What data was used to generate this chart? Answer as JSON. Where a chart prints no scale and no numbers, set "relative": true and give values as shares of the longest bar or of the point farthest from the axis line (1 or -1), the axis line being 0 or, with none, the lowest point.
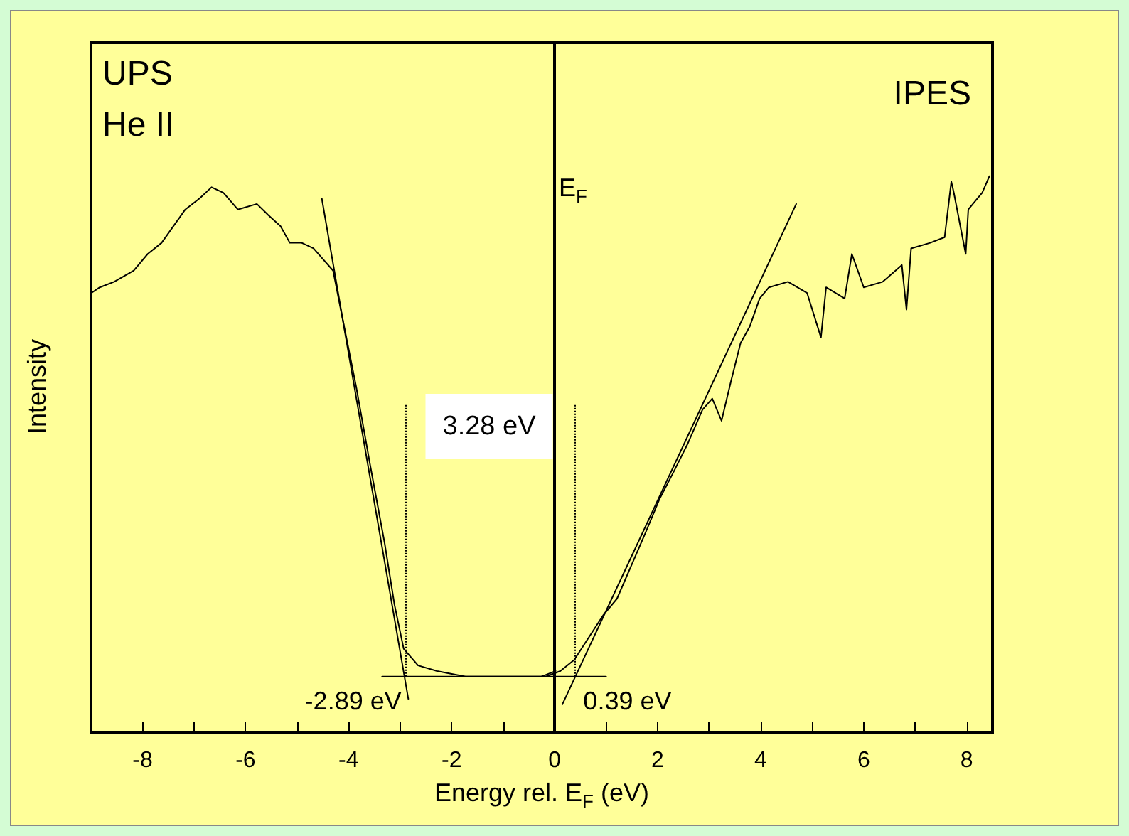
{
  "chart_data": {
    "type": "line",
    "xlabel": "Energy rel. E$_{F}$ (eV)",
    "ylabel": "Intensity",
    "relative": true,
    "xlim": [
      -9,
      8.5
    ],
    "xticks": [
      -8,
      {
        "value": -7,
        "label": null
      },
      -6,
      {
        "value": -5,
        "label": null
      },
      -4,
      {
        "value": -3,
        "label": null
      },
      -2,
      {
        "value": -1,
        "label": null
      },
      0,
      {
        "value": 1,
        "label": null
      },
      2,
      {
        "value": 3,
        "label": null
      },
      4,
      {
        "value": 5,
        "label": null
      },
      6,
      {
        "value": 7,
        "label": null
      },
      8
    ],
    "series": [
      {
        "color": "#000000",
        "x": [
          -8.99,
          -8.83,
          -8.55,
          -8.17,
          -7.9,
          -7.63,
          -7.4,
          -7.17,
          -6.89,
          -6.66,
          -6.43,
          -6.15,
          -5.78,
          -5.56,
          -5.32,
          -5.14,
          -4.91,
          -4.68,
          -4.49,
          -4.3,
          -4.13,
          -3.85,
          -3.58,
          -3.3,
          -3.11,
          -2.93,
          -2.65,
          -2.28,
          -1.73,
          -1.18,
          -0.81,
          -0.54,
          -0.26,
          0.02
        ],
        "values": [
          0.79,
          0.8,
          0.81,
          0.83,
          0.86,
          0.88,
          0.91,
          0.94,
          0.96,
          0.98,
          0.97,
          0.94,
          0.95,
          0.93,
          0.91,
          0.88,
          0.88,
          0.87,
          0.85,
          0.83,
          0.75,
          0.62,
          0.48,
          0.34,
          0.23,
          0.15,
          0.12,
          0.11,
          0.1,
          0.1,
          0.1,
          0.1,
          0.1,
          0.11
        ]
      },
      {
        "color": "#000000",
        "x": [
          -0.17,
          0.11,
          0.38,
          0.66,
          0.94,
          1.21,
          1.49,
          1.77,
          2.04,
          2.32,
          2.59,
          2.87,
          3.06,
          3.24,
          3.42,
          3.61,
          3.79,
          3.98,
          4.16,
          4.53,
          4.9,
          5.17,
          5.27,
          5.63,
          5.77,
          6.0,
          6.37,
          6.74,
          6.83,
          6.92,
          7.29,
          7.57,
          7.7,
          7.75,
          7.98,
          8.03,
          8.3,
          8.44
        ],
        "values": [
          0.1,
          0.11,
          0.13,
          0.17,
          0.21,
          0.24,
          0.3,
          0.36,
          0.42,
          0.47,
          0.52,
          0.58,
          0.6,
          0.56,
          0.63,
          0.7,
          0.73,
          0.78,
          0.8,
          0.81,
          0.79,
          0.71,
          0.8,
          0.78,
          0.86,
          0.8,
          0.81,
          0.84,
          0.76,
          0.87,
          0.88,
          0.89,
          0.99,
          0.97,
          0.86,
          0.94,
          0.97,
          1.0
        ]
      },
      {
        "color": "#000000",
        "x": [
          -4.52,
          -2.84
        ],
        "values": [
          0.96,
          0.06
        ]
      },
      {
        "color": "#000000",
        "x": [
          -3.35,
          1.0
        ],
        "values": [
          0.1,
          0.1
        ]
      },
      {
        "color": "#000000",
        "x": [
          0.15,
          4.69
        ],
        "values": [
          0.05,
          0.95
        ]
      }
    ],
    "ref_lines": [
      {
        "axis": "x",
        "value": 0,
        "label": "E$_{F}$",
        "color": "#000000",
        "line_style": "solid"
      },
      {
        "axis": "x",
        "value": -2.89,
        "label": "-2.89 eV",
        "color": "#000000",
        "line_style": "dotted"
      },
      {
        "axis": "x",
        "value": 0.39,
        "label": "0.39 eV",
        "color": "#000000",
        "line_style": "dotted"
      }
    ],
    "annotations": [
      "UPS\nHe II",
      "IPES",
      "3.28 eV"
    ],
    "marker": "none",
    "line_style": "solid",
    "grid": false,
    "tick_labels": "x"
  }
}
